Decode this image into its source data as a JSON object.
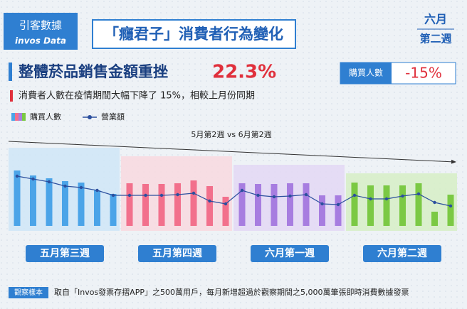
{
  "header": {
    "brand": "引客數據",
    "brand_sub": "invos Data",
    "title": "「癮君子」消費者行為變化",
    "period_month": "六月",
    "period_week": "第二週"
  },
  "headline": {
    "text": "整體菸品銷售金額重挫",
    "value": "22.3%",
    "box_label": "購買人數",
    "box_value": "-15%"
  },
  "note": "消費者人數在疫情期間大幅下降了 15%，相較上月份同期",
  "footer": {
    "tag": "觀察樣本",
    "text": "取自「Invos發票存摺APP」之500萬用戶，每月新增超過於觀察期間之5,000萬筆張即時消費數據發票"
  },
  "chart_data": {
    "type": "bar",
    "annotation": "5月第2週 vs 6月第2週",
    "categories": [
      null,
      null,
      null,
      null,
      null,
      null,
      null,
      null,
      null,
      null,
      null,
      null,
      null,
      null,
      null,
      null,
      null,
      null,
      null,
      null,
      null,
      null,
      null,
      null,
      null,
      null,
      null,
      null
    ],
    "ylim": [
      0,
      100
    ],
    "groups": [
      {
        "label": "五月第三週",
        "color": "#4ba4e8",
        "panel": "#cfe6f7"
      },
      {
        "label": "五月第四週",
        "color": "#f2708c",
        "panel": "#f8d9df"
      },
      {
        "label": "六月第一週",
        "color": "#a77de0",
        "panel": "#e3d8f4"
      },
      {
        "label": "六月第二週",
        "color": "#7bc944",
        "panel": "#d6efc5"
      }
    ],
    "series": [
      {
        "name": "購買人數",
        "type": "bar",
        "values": [
          78,
          71,
          67,
          63,
          61,
          50,
          45,
          60,
          59,
          59,
          60,
          64,
          56,
          41,
          60,
          59,
          59,
          60,
          60,
          43,
          43,
          61,
          57,
          57,
          57,
          60,
          20,
          44
        ]
      },
      {
        "name": "營業額",
        "type": "line",
        "color": "#2b4f9e",
        "values": [
          70,
          66,
          62,
          56,
          54,
          50,
          43,
          43,
          43,
          43,
          44,
          46,
          35,
          31,
          50,
          43,
          41,
          42,
          44,
          31,
          30,
          43,
          38,
          38,
          42,
          45,
          33,
          28
        ]
      }
    ]
  }
}
